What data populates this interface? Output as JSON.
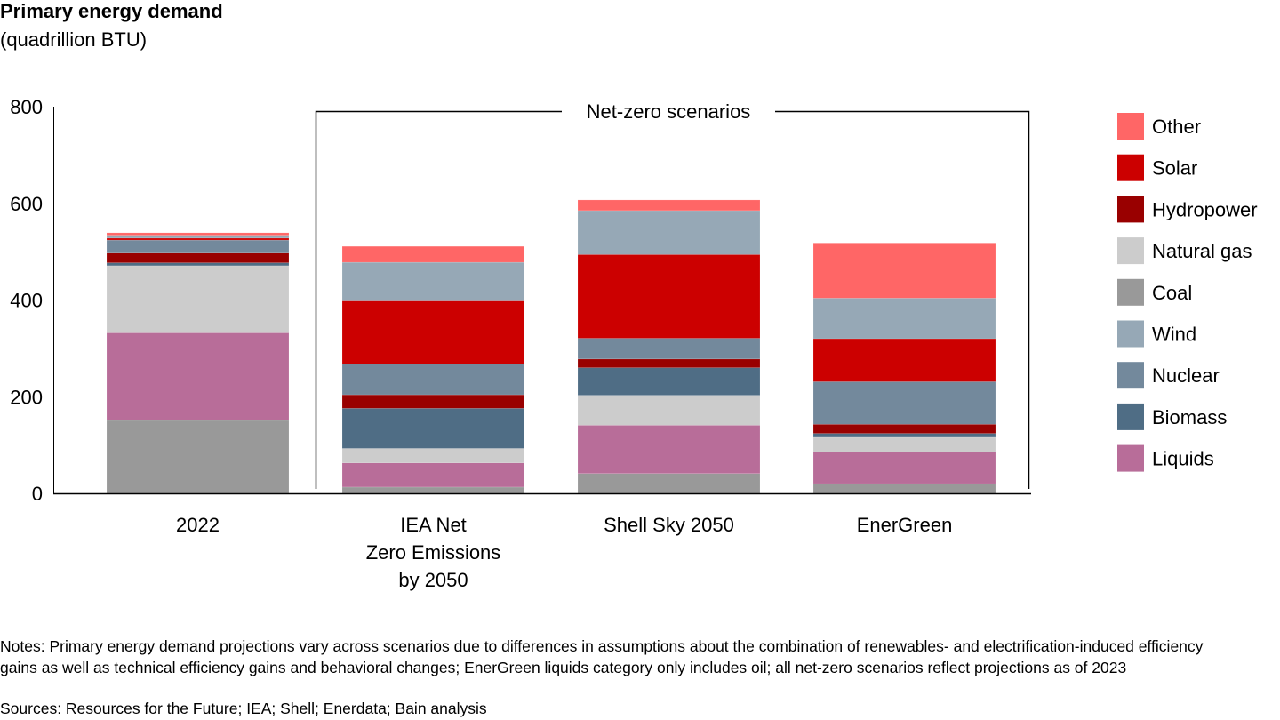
{
  "chart_data": {
    "type": "bar",
    "stacked": true,
    "title": "Primary energy demand",
    "subtitle": "(quadrillion BTU)",
    "ylabel": "",
    "xlabel": "",
    "ylim": [
      0,
      800
    ],
    "yticks": [
      0,
      200,
      400,
      600,
      800
    ],
    "grid": false,
    "legend_position": "right",
    "bracket_label": "Net-zero scenarios",
    "categories": [
      "2022",
      "IEA Net\nZero Emissions\nby 2050",
      "Shell Sky 2050",
      "EnerGreen"
    ],
    "series": [
      {
        "name": "Coal",
        "color": "#999999",
        "values": [
          151,
          13,
          41,
          20
        ]
      },
      {
        "name": "Liquids",
        "color": "#b86d99",
        "values": [
          181,
          50,
          100,
          66
        ]
      },
      {
        "name": "Natural gas",
        "color": "#cccccc",
        "values": [
          139,
          30,
          62,
          30
        ]
      },
      {
        "name": "Biomass",
        "color": "#4f6d85",
        "values": [
          6,
          83,
          57,
          8
        ]
      },
      {
        "name": "Hydropower",
        "color": "#990000",
        "values": [
          20,
          28,
          18,
          19
        ]
      },
      {
        "name": "Nuclear",
        "color": "#73899c",
        "values": [
          27,
          64,
          43,
          88
        ]
      },
      {
        "name": "Solar",
        "color": "#cc0000",
        "values": [
          4,
          130,
          173,
          89
        ]
      },
      {
        "name": "Wind",
        "color": "#96a8b6",
        "values": [
          6,
          80,
          91,
          84
        ]
      },
      {
        "name": "Other",
        "color": "#ff6666",
        "values": [
          5,
          33,
          22,
          114
        ]
      }
    ],
    "legend_order": [
      "Other",
      "Solar",
      "Hydropower",
      "Natural gas",
      "Coal",
      "Wind",
      "Nuclear",
      "Biomass",
      "Liquids"
    ]
  },
  "notes": "Notes: Primary energy demand projections vary across scenarios due to differences in assumptions about the combination of renewables- and electrification-induced efficiency gains as well as technical efficiency gains and behavioral changes; EnerGreen liquids category only includes oil; all net-zero scenarios reflect projections as of 2023",
  "sources": "Sources: Resources for the Future; IEA; Shell; Enerdata; Bain analysis"
}
